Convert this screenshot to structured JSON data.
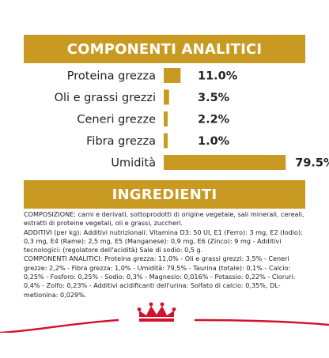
{
  "sections": {
    "components_title": "COMPONENTI ANALITICI",
    "ingredients_title": "INGREDIENTI"
  },
  "ingredients": {
    "paragraphs": [
      "COMPOSIZIONE: carni e derivati, sottoprodotti di origine vegetale, sali minerali, cereali, estratti di proteine vegetali, oli e grassi, zuccheri.",
      "ADDITIVI (per kg): Additivi nutrizionali: Vitamina D3: 50 UI, E1 (Ferro): 3 mg, E2 (Iodio): 0,3 mg, E4 (Rame): 2,5 mg, E5 (Manganese): 0,9 mg, E6 (Zinco): 9 mg - Additivi tecnologici: (regolatore dell'acidità) Sale di sodio: 0,5 g.",
      "COMPONENTI ANALITICI: Proteina grezza: 11,0% - Oli e grassi grezzi: 3,5% - Ceneri grezze: 2,2% - Fibra grezza: 1,0% - Umidità: 79,5% - Taurina (totale): 0,1% - Calcio: 0,25% - Fosforo: 0,25% - Sodio: 0,3% - Magnesio: 0,016% - Potassio: 0,22% - Cloruri: 0,4% - Zolfo: 0,23% - Additivi acidificanti dell'urina: Solfato di calcio: 0,35%, DL-metionina: 0,029%."
    ]
  },
  "colors": {
    "gold": "#c89a22",
    "brand_red": "#d3112a"
  },
  "chart_data": {
    "type": "bar",
    "orientation": "horizontal",
    "categories": [
      "Proteina grezza",
      "Oli e grassi grezzi",
      "Ceneri grezze",
      "Fibra grezza",
      "Umidità"
    ],
    "values": [
      11.0,
      3.5,
      2.2,
      1.0,
      79.5
    ],
    "value_labels": [
      "11.0%",
      "3.5%",
      "2.2%",
      "1.0%",
      "79.5%"
    ],
    "unit": "%",
    "xlim": [
      0,
      100
    ],
    "title": "COMPONENTI ANALITICI",
    "grid": false,
    "legend": "none",
    "color": "#c89a22"
  }
}
